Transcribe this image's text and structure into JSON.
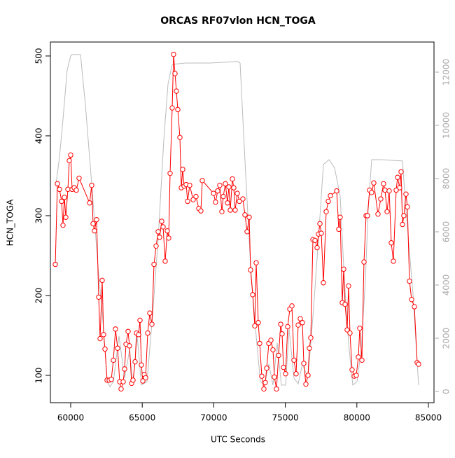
{
  "chart_data": {
    "type": "line",
    "title": "ORCAS RF07vlon HCN_TOGA",
    "x_label": "UTC Seconds",
    "y_label": "HCN_TOGA",
    "xlim": [
      58581,
      85391
    ],
    "xticks": [
      60000,
      65000,
      70000,
      75000,
      80000,
      85000
    ],
    "ylim": [
      65.8,
      517.5
    ],
    "yticks": [
      100,
      200,
      300,
      400,
      500
    ],
    "y2lim": [
      -421,
      13131
    ],
    "y2ticks": [
      0,
      2000,
      4000,
      6000,
      8000,
      10000,
      12000
    ],
    "y2_color": "#aaaaaa",
    "series": [
      {
        "color": "#ff0000",
        "markers": true,
        "x": [
          58924,
          59070,
          59217,
          59364,
          59462,
          59560,
          59658,
          59804,
          59902,
          60000,
          60098,
          60245,
          60391,
          60587,
          61321,
          61467,
          61565,
          61663,
          61810,
          61957,
          62054,
          62201,
          62299,
          62397,
          62544,
          62691,
          62837,
          62984,
          63131,
          63278,
          63424,
          63522,
          63669,
          63767,
          63865,
          64011,
          64109,
          64256,
          64354,
          64501,
          64599,
          64745,
          64843,
          64941,
          65039,
          65137,
          65235,
          65381,
          65528,
          65675,
          65822,
          65968,
          66115,
          66213,
          66360,
          66458,
          66605,
          66751,
          66849,
          66947,
          67094,
          67191,
          67289,
          67387,
          67485,
          67632,
          67730,
          67828,
          67925,
          68072,
          68170,
          68317,
          68561,
          68757,
          68952,
          69099,
          69197,
          69980,
          70126,
          70273,
          70420,
          70566,
          70664,
          70811,
          70958,
          71056,
          71153,
          71300,
          71398,
          71496,
          71643,
          71790,
          72034,
          72181,
          72328,
          72475,
          72573,
          72720,
          72866,
          72964,
          73111,
          73209,
          73356,
          73502,
          73600,
          73698,
          73845,
          73992,
          74138,
          74236,
          74383,
          74530,
          74677,
          74774,
          74872,
          75019,
          75166,
          75313,
          75460,
          75606,
          75753,
          75900,
          76047,
          76194,
          76292,
          76438,
          76585,
          76683,
          76781,
          76928,
          77074,
          77221,
          77319,
          77417,
          77515,
          77662,
          77857,
          78004,
          78151,
          78589,
          78736,
          78834,
          78981,
          79079,
          79177,
          79323,
          79421,
          79519,
          79666,
          79813,
          79959,
          80106,
          80204,
          80351,
          80497,
          80644,
          80742,
          80889,
          81036,
          81182,
          81476,
          81671,
          81867,
          81965,
          82112,
          82259,
          82405,
          82552,
          82748,
          82846,
          82993,
          83091,
          83189,
          83286,
          83433,
          83531,
          83678,
          83825,
          84020,
          84216,
          84314
        ],
        "values": [
          239,
          340,
          333,
          318,
          288,
          323,
          298,
          333,
          369,
          376,
          333,
          335,
          332,
          347,
          316,
          338,
          290,
          281,
          295,
          198,
          146,
          219,
          151,
          133,
          94,
          94,
          95,
          119,
          158,
          134,
          92,
          83,
          92,
          108,
          139,
          155,
          137,
          90,
          94,
          117,
          153,
          151,
          169,
          113,
          93,
          101,
          97,
          153,
          178,
          164,
          239,
          262,
          280,
          273,
          293,
          286,
          243,
          281,
          272,
          353,
          435,
          502,
          478,
          456,
          433,
          398,
          335,
          358,
          337,
          339,
          318,
          338,
          320,
          324,
          309,
          306,
          344,
          328,
          317,
          331,
          338,
          305,
          324,
          340,
          316,
          336,
          307,
          346,
          335,
          307,
          328,
          318,
          321,
          301,
          280,
          298,
          232,
          201,
          162,
          241,
          166,
          140,
          99,
          83,
          91,
          109,
          140,
          144,
          132,
          98,
          83,
          125,
          164,
          152,
          110,
          102,
          161,
          183,
          187,
          119,
          102,
          163,
          171,
          166,
          115,
          89,
          100,
          134,
          147,
          270,
          269,
          260,
          277,
          290,
          278,
          216,
          305,
          318,
          325,
          331,
          283,
          298,
          191,
          233,
          189,
          157,
          212,
          153,
          107,
          99,
          100,
          123,
          159,
          119,
          242,
          300,
          300,
          332,
          329,
          341,
          302,
          321,
          340,
          332,
          305,
          331,
          266,
          243,
          332,
          348,
          335,
          355,
          289,
          300,
          327,
          311,
          218,
          195,
          186,
          116,
          114
        ]
      },
      {
        "color": "#bbbbbb",
        "axis": "y2",
        "markers": false,
        "x": [
          58973,
          59217,
          59462,
          59755,
          60000,
          60098,
          60685,
          61027,
          61419,
          61908,
          62299,
          62544,
          62740,
          62984,
          63375,
          63767,
          64109,
          64354,
          64647,
          64941,
          65333,
          65724,
          66115,
          66506,
          66800,
          67094,
          68023,
          69735,
          70713,
          71692,
          71839,
          72181,
          72573,
          72964,
          73258,
          73551,
          73845,
          74138,
          74432,
          74725,
          75019,
          75263,
          75606,
          75900,
          76194,
          76585,
          76976,
          77319,
          77662,
          78053,
          78443,
          78834,
          79128,
          79421,
          79715,
          80008,
          80302,
          80595,
          80791,
          81036,
          81721,
          83188,
          83433,
          83922,
          84314
        ],
        "values": [
          7800,
          8800,
          10240,
          12080,
          12610,
          12660,
          12660,
          10770,
          8130,
          4710,
          2340,
          370,
          180,
          370,
          2080,
          500,
          1550,
          240,
          2080,
          240,
          370,
          2870,
          5760,
          9450,
          11550,
          12290,
          12340,
          12340,
          12370,
          12400,
          12340,
          8660,
          4710,
          2080,
          370,
          240,
          1030,
          240,
          1820,
          240,
          240,
          2340,
          500,
          290,
          1030,
          500,
          3130,
          5760,
          8530,
          8710,
          8400,
          7340,
          4180,
          1820,
          240,
          370,
          1550,
          4180,
          6820,
          8710,
          8710,
          8660,
          6820,
          3660,
          240
        ]
      }
    ]
  }
}
